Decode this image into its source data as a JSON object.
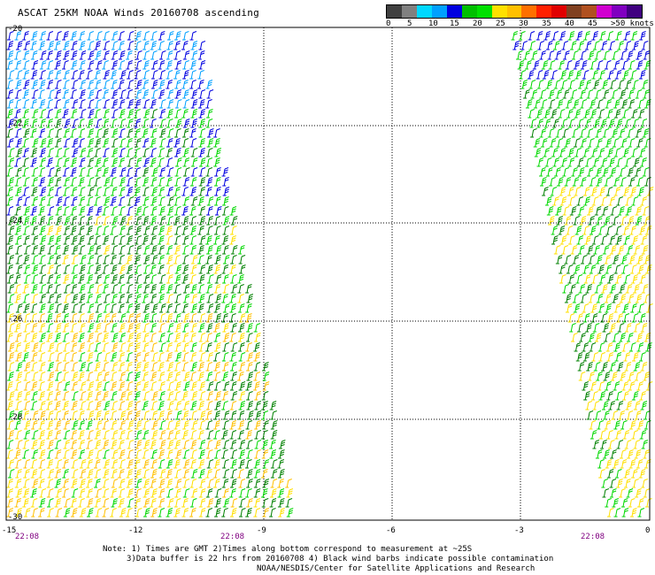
{
  "title": "ASCAT 25KM NOAA Winds 20160708 ascending",
  "legend": {
    "labels": [
      "0",
      "5",
      "10",
      "15",
      "20",
      "25",
      "30",
      "35",
      "40",
      "45",
      ">50 knots"
    ],
    "colors": [
      "#404040",
      "#808080",
      "#00d8ff",
      "#00a0ff",
      "#0000e0",
      "#00c000",
      "#00e000",
      "#ffe000",
      "#ffc000",
      "#ff7000",
      "#ff2000",
      "#e00000",
      "#804020",
      "#b05020",
      "#d000d0",
      "#8000c0",
      "#400080"
    ]
  },
  "axes": {
    "lon_ticks": [
      "-15",
      "-12",
      "-9",
      "-6",
      "-3",
      "0"
    ],
    "lat_ticks": [
      "-20",
      "-22",
      "-24",
      "-26",
      "-28",
      "-30"
    ]
  },
  "times": [
    "22:08",
    "22:08",
    "22:08"
  ],
  "notes": {
    "line1": "Note: 1) Times are GMT 2)Times along bottom correspond to measurement at ~25S",
    "line2": "3)Data buffer is 22 hrs from 20160708 4) Black wind barbs indicate possible contamination",
    "line3": "NOAA/NESDIS/Center for Satellite Applications and Research"
  },
  "swaths": [
    {
      "name": "west-swath"
    },
    {
      "name": "east-swath"
    }
  ],
  "barb_colors": {
    "blue": "#0000e0",
    "cyan": "#00a0ff",
    "green": "#00d800",
    "dark_green": "#008000",
    "yellow": "#ffe000",
    "gold": "#ffc000"
  }
}
